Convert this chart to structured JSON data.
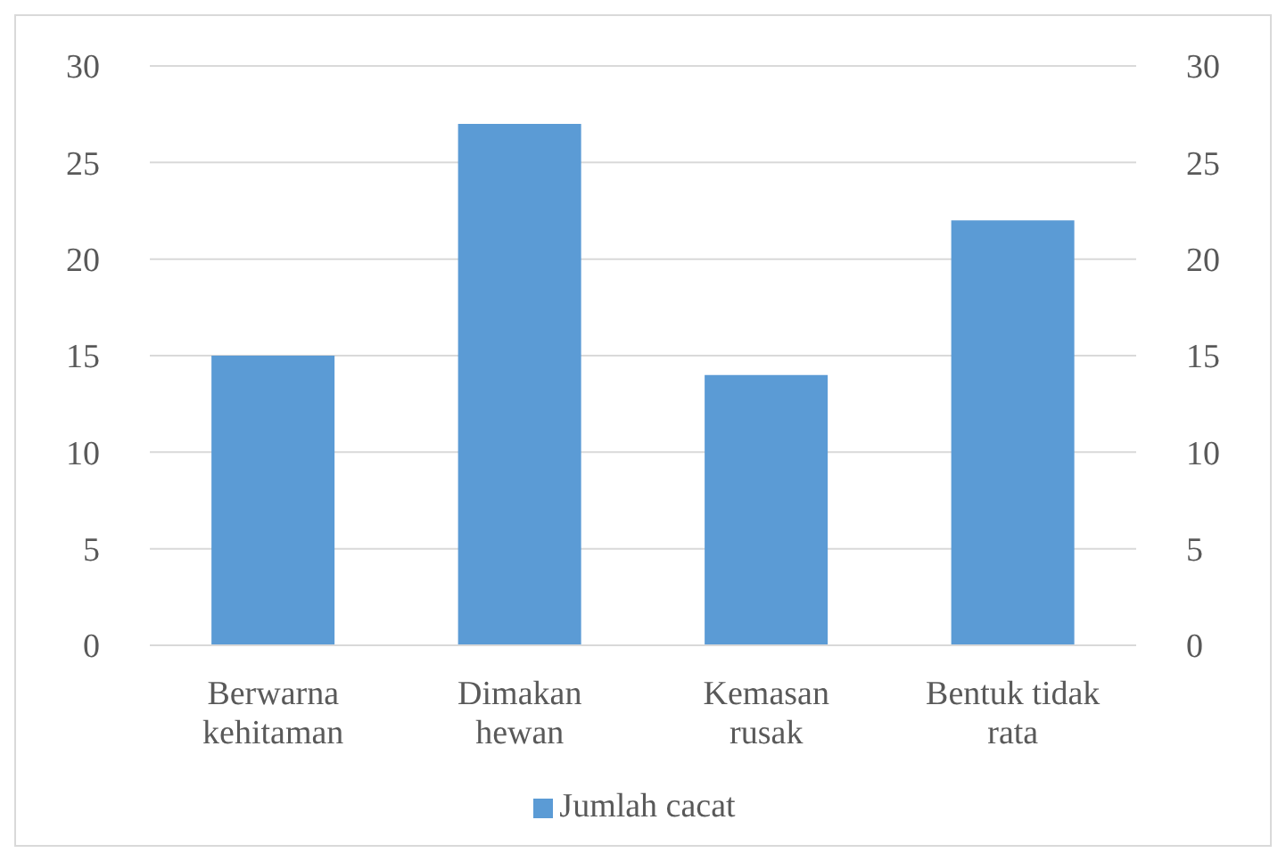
{
  "chart_data": {
    "type": "bar",
    "categories": [
      "Berwarna kehitaman",
      "Dimakan hewan",
      "Kemasan rusak",
      "Bentuk tidak rata"
    ],
    "series": [
      {
        "name": "Jumlah cacat",
        "color": "#5b9bd5",
        "values": [
          15,
          27,
          14,
          22
        ]
      }
    ],
    "ylim": [
      0,
      30
    ],
    "yticks": [
      0,
      5,
      10,
      15,
      20,
      25,
      30
    ],
    "y2lim": [
      0,
      30
    ],
    "y2ticks": [
      0,
      5,
      10,
      15,
      20,
      25,
      30
    ],
    "grid": "y",
    "legend": "bottom"
  }
}
